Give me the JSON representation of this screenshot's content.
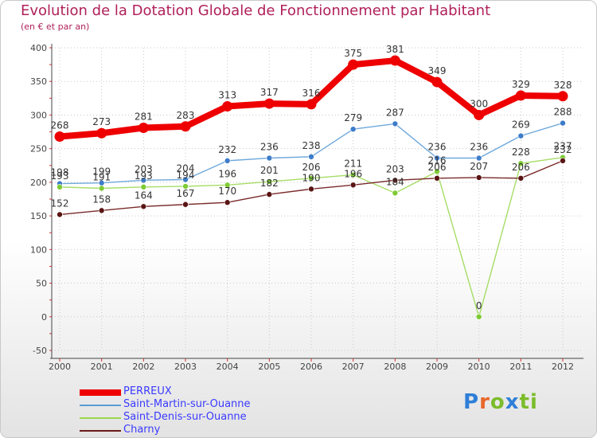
{
  "chart_data": {
    "type": "line",
    "title": "Evolution de la Dotation Globale de Fonctionnement par Habitant",
    "subtitle": "(en € et par an)",
    "categories": [
      "2000",
      "2001",
      "2002",
      "2003",
      "2004",
      "2005",
      "2006",
      "2007",
      "2008",
      "2009",
      "2010",
      "2011",
      "2012"
    ],
    "ylim": [
      -50,
      400
    ],
    "yticks": [
      -50,
      0,
      50,
      100,
      150,
      200,
      250,
      300,
      350,
      400
    ],
    "grid": true,
    "series": [
      {
        "name": "PERREUX",
        "color": "#ee0000",
        "values": [
          268,
          273,
          281,
          283,
          313,
          317,
          316,
          375,
          381,
          349,
          300,
          329,
          328
        ]
      },
      {
        "name": "Saint-Martin-sur-Ouanne",
        "color": "#5b9bd5",
        "values": [
          198,
          199,
          203,
          204,
          232,
          236,
          238,
          279,
          287,
          236,
          236,
          269,
          288
        ]
      },
      {
        "name": "Saint-Denis-sur-Ouanne",
        "color": "#9ad84a",
        "values": [
          193,
          191,
          193,
          194,
          196,
          201,
          206,
          211,
          184,
          216,
          0,
          228,
          237
        ]
      },
      {
        "name": "Charny",
        "color": "#6b1a1a",
        "values": [
          152,
          158,
          164,
          167,
          170,
          182,
          190,
          196,
          203,
          206,
          207,
          206,
          232
        ]
      }
    ]
  },
  "brand": {
    "p": "P",
    "r": "r",
    "o": "o",
    "x": "x",
    "i": "i",
    "t": "ti"
  }
}
